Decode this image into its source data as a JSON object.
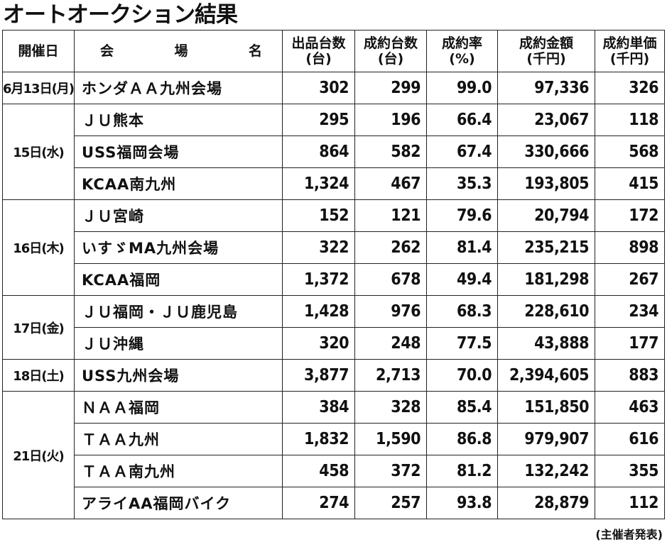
{
  "title": "オートオークション結果",
  "headers": {
    "date": "開催日",
    "venue_chars": [
      "会",
      "場",
      "名"
    ],
    "listed": {
      "label": "出品台数",
      "unit": "(台)"
    },
    "sold": {
      "label": "成約台数",
      "unit": "(台)"
    },
    "rate": {
      "label": "成約率",
      "unit": "(%)"
    },
    "amount": {
      "label": "成約金額",
      "unit": "(千円)"
    },
    "unit_price": {
      "label": "成約単価",
      "unit": "(千円)"
    }
  },
  "groups": [
    {
      "date": "6月13日(月)",
      "rows": [
        {
          "venue": "ホンダＡＡ九州会場",
          "listed": "302",
          "sold": "299",
          "rate": "99.0",
          "amount": "97,336",
          "unit_price": "326"
        }
      ]
    },
    {
      "date": "15日(水)",
      "rows": [
        {
          "venue": "ＪＵ熊本",
          "listed": "295",
          "sold": "196",
          "rate": "66.4",
          "amount": "23,067",
          "unit_price": "118"
        },
        {
          "venue": "USS福岡会場",
          "listed": "864",
          "sold": "582",
          "rate": "67.4",
          "amount": "330,666",
          "unit_price": "568"
        },
        {
          "venue": "KCAA南九州",
          "listed": "1,324",
          "sold": "467",
          "rate": "35.3",
          "amount": "193,805",
          "unit_price": "415"
        }
      ]
    },
    {
      "date": "16日(木)",
      "rows": [
        {
          "venue": "ＪＵ宮崎",
          "listed": "152",
          "sold": "121",
          "rate": "79.6",
          "amount": "20,794",
          "unit_price": "172"
        },
        {
          "venue": "いすゞMA九州会場",
          "listed": "322",
          "sold": "262",
          "rate": "81.4",
          "amount": "235,215",
          "unit_price": "898"
        },
        {
          "venue": "KCAA福岡",
          "listed": "1,372",
          "sold": "678",
          "rate": "49.4",
          "amount": "181,298",
          "unit_price": "267"
        }
      ]
    },
    {
      "date": "17日(金)",
      "rows": [
        {
          "venue": "ＪＵ福岡・ＪＵ鹿児島",
          "listed": "1,428",
          "sold": "976",
          "rate": "68.3",
          "amount": "228,610",
          "unit_price": "234"
        },
        {
          "venue": "ＪＵ沖縄",
          "listed": "320",
          "sold": "248",
          "rate": "77.5",
          "amount": "43,888",
          "unit_price": "177"
        }
      ]
    },
    {
      "date": "18日(土)",
      "rows": [
        {
          "venue": "USS九州会場",
          "listed": "3,877",
          "sold": "2,713",
          "rate": "70.0",
          "amount": "2,394,605",
          "unit_price": "883"
        }
      ]
    },
    {
      "date": "21日(火)",
      "rows": [
        {
          "venue": "ＮＡＡ福岡",
          "listed": "384",
          "sold": "328",
          "rate": "85.4",
          "amount": "151,850",
          "unit_price": "463"
        },
        {
          "venue": "ＴＡＡ九州",
          "listed": "1,832",
          "sold": "1,590",
          "rate": "86.8",
          "amount": "979,907",
          "unit_price": "616"
        },
        {
          "venue": "ＴＡＡ南九州",
          "listed": "458",
          "sold": "372",
          "rate": "81.2",
          "amount": "132,242",
          "unit_price": "355"
        },
        {
          "venue": "アライAA福岡バイク",
          "listed": "274",
          "sold": "257",
          "rate": "93.8",
          "amount": "28,879",
          "unit_price": "112"
        }
      ]
    }
  ],
  "footnote": "(主催者発表)"
}
